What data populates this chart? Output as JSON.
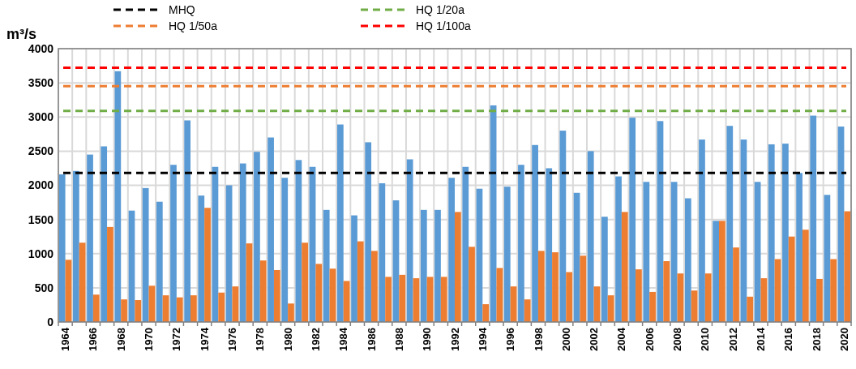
{
  "chart_data": {
    "type": "bar",
    "ylabel": "m³/s",
    "categories": [
      "1964",
      null,
      "1966",
      null,
      "1968",
      null,
      "1970",
      null,
      "1972",
      null,
      "1974",
      null,
      "1976",
      null,
      "1978",
      null,
      "1980",
      null,
      "1982",
      null,
      "1984",
      null,
      "1986",
      null,
      "1988",
      null,
      "1990",
      null,
      "1992",
      null,
      "1994",
      null,
      "1996",
      null,
      "1998",
      null,
      "2000",
      null,
      "2002",
      null,
      "2004",
      null,
      "2006",
      null,
      "2008",
      null,
      "2010",
      null,
      "2012",
      null,
      "2014",
      null,
      "2016",
      null,
      "2018",
      null,
      "2020"
    ],
    "series": [
      {
        "color": "#5b9bd5",
        "values": [
          2160,
          2210,
          2450,
          2570,
          3670,
          1630,
          1960,
          1760,
          2300,
          2950,
          1850,
          2270,
          2000,
          2320,
          2490,
          2700,
          2110,
          2370,
          2270,
          1640,
          2890,
          1560,
          2630,
          2030,
          1780,
          2380,
          1640,
          1640,
          2110,
          2270,
          1950,
          3170,
          1980,
          2300,
          2590,
          2250,
          2800,
          1890,
          2500,
          1540,
          2130,
          2990,
          2050,
          2940,
          2050,
          1810,
          2670,
          1480,
          2870,
          2670,
          2050,
          2600,
          2610,
          2180,
          3020,
          1860,
          2860
        ]
      },
      {
        "color": "#ed7d31",
        "values": [
          910,
          1160,
          400,
          1390,
          330,
          320,
          530,
          390,
          360,
          390,
          1670,
          430,
          520,
          1150,
          900,
          760,
          270,
          1160,
          850,
          780,
          600,
          1180,
          1040,
          660,
          690,
          640,
          660,
          660,
          1610,
          1100,
          260,
          790,
          520,
          330,
          1040,
          1020,
          730,
          970,
          520,
          390,
          1610,
          770,
          440,
          890,
          710,
          460,
          710,
          1480,
          1090,
          370,
          640,
          920,
          1250,
          1350,
          630,
          920,
          1620
        ]
      }
    ],
    "ylim": [
      0,
      4000
    ],
    "yticks": [
      0,
      500,
      1000,
      1500,
      2000,
      2500,
      3000,
      3500,
      4000
    ],
    "grid": true,
    "legend": "top",
    "ref_lines": [
      {
        "axis": "y",
        "value": 2180,
        "label": "MHQ",
        "color": "#000000",
        "line_style": "dashed"
      },
      {
        "axis": "y",
        "value": 3090,
        "label": "HQ 1/20a",
        "color": "#70ad47",
        "line_style": "dashed"
      },
      {
        "axis": "y",
        "value": 3450,
        "label": "HQ 1/50a",
        "color": "#ed7d31",
        "line_style": "dashed"
      },
      {
        "axis": "y",
        "value": 3720,
        "label": "HQ 1/100a",
        "color": "#ff0000",
        "line_style": "dashed"
      }
    ]
  }
}
